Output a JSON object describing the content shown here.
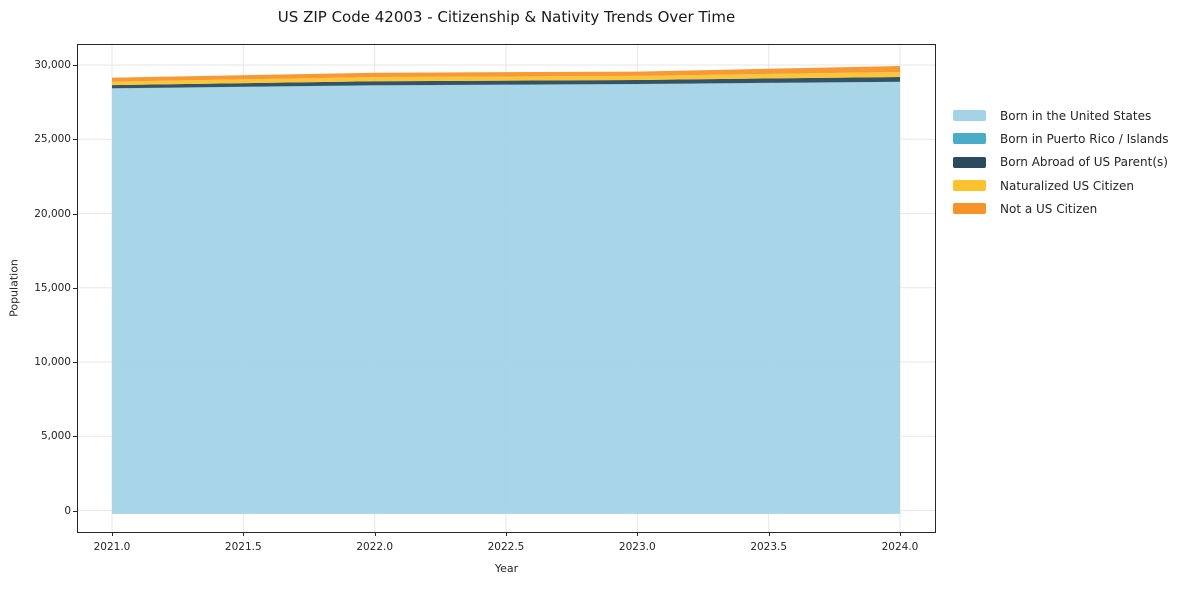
{
  "chart_data": {
    "type": "area",
    "stacked": true,
    "title": "US ZIP Code 42003 - Citizenship & Nativity Trends Over Time",
    "xlabel": "Year",
    "ylabel": "Population",
    "x": [
      2021,
      2022,
      2023,
      2024
    ],
    "series": [
      {
        "name": "Born in the United States",
        "color": "#A4D3E8",
        "values": [
          28420,
          28620,
          28710,
          28860
        ]
      },
      {
        "name": "Born in Puerto Rico / Islands",
        "color": "#4AACC6",
        "values": [
          15,
          15,
          15,
          15
        ]
      },
      {
        "name": "Born Abroad of US Parent(s)",
        "color": "#2A4A5E",
        "values": [
          215,
          270,
          270,
          320
        ]
      },
      {
        "name": "Naturalized US Citizen",
        "color": "#FDC32E",
        "values": [
          230,
          285,
          275,
          340
        ]
      },
      {
        "name": "Not a US Citizen",
        "color": "#F79429",
        "values": [
          270,
          290,
          290,
          400
        ]
      }
    ],
    "x_tick_values": [
      2021,
      2021.5,
      2022,
      2022.5,
      2023,
      2023.5,
      2024
    ],
    "x_tick_labels": [
      "2021.0",
      "2021.5",
      "2022.0",
      "2022.5",
      "2023.0",
      "2023.5",
      "2024.0"
    ],
    "y_tick_values": [
      0,
      5000,
      10000,
      15000,
      20000,
      25000,
      30000
    ],
    "y_tick_labels": [
      "0",
      "5,000",
      "10,000",
      "15,000",
      "20,000",
      "25,000",
      "30,000"
    ],
    "xlim": [
      2020.8706,
      2024.1332
    ],
    "ylim": [
      -1450,
      31350
    ],
    "area_baseline": -230,
    "grid": true,
    "legend_position": "right-outside"
  },
  "colors": {
    "text": "#262626",
    "grid": "#E7E7E7",
    "spine": "#262626",
    "background": "#ffffff"
  }
}
